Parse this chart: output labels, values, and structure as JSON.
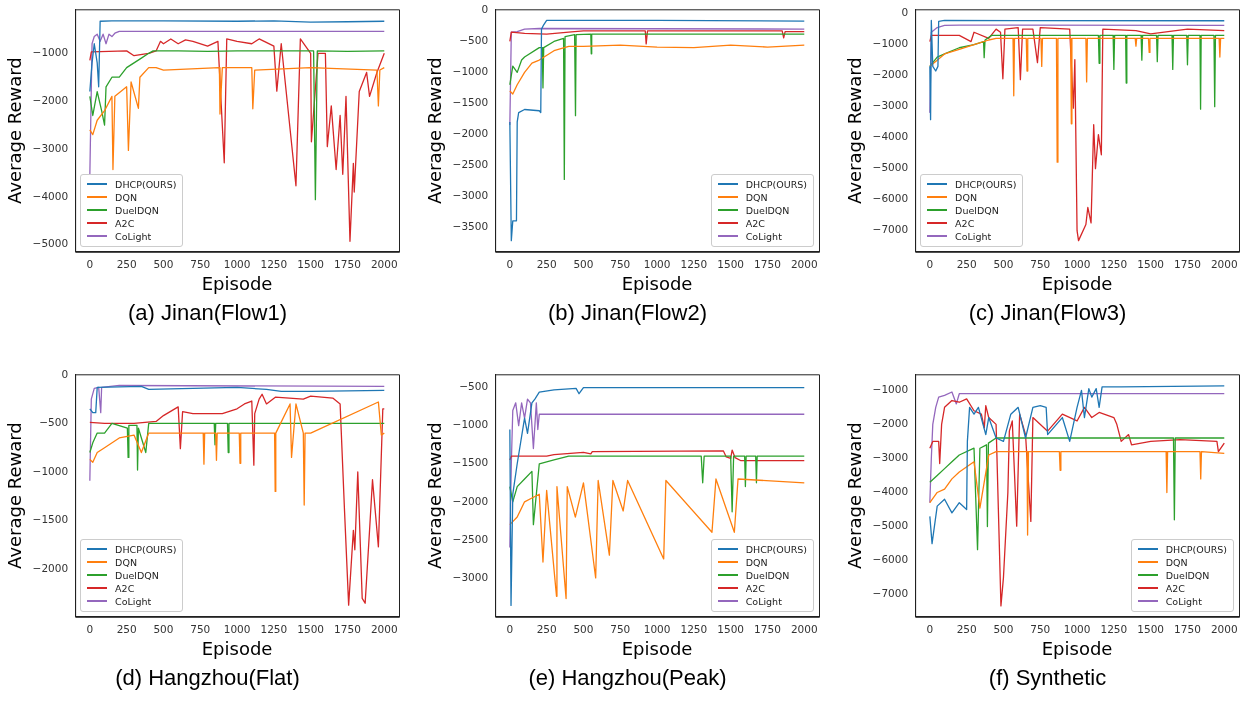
{
  "chart_data": [
    {
      "type": "line",
      "title": "(a) Jinan(Flow1)",
      "xlabel": "Episode",
      "ylabel": "Average Reward",
      "xlim": [
        -100,
        2100
      ],
      "xticks": [
        0,
        250,
        500,
        750,
        1000,
        1250,
        1500,
        1750,
        2000
      ],
      "ylim": [
        -5150,
        -80
      ],
      "yticks": [
        -5000,
        -4000,
        -3000,
        -2000,
        -1000
      ],
      "legend": "bottom left",
      "series": [
        {
          "name": "DHCP(OURS)",
          "color": "#1f77b4",
          "x": [
            0,
            15,
            30,
            50,
            60,
            70,
            150,
            500,
            1000,
            1250,
            1500,
            1750,
            2000
          ],
          "values": [
            -1800,
            -1200,
            -800,
            -1200,
            -1700,
            -330,
            -320,
            -320,
            -330,
            -320,
            -350,
            -340,
            -330
          ]
        },
        {
          "name": "DQN",
          "color": "#ff7f0e",
          "x": [
            0,
            20,
            50,
            100,
            150,
            157,
            170,
            250,
            262,
            280,
            330,
            340,
            400,
            450,
            500,
            880,
            884,
            900,
            1100,
            1107,
            1120,
            1500,
            1950,
            1960,
            1970,
            2000
          ],
          "values": [
            -2600,
            -2700,
            -2400,
            -2200,
            -1900,
            -3430,
            -1900,
            -1700,
            -3030,
            -1600,
            -2150,
            -1500,
            -1300,
            -1300,
            -1350,
            -1300,
            -2270,
            -1300,
            -1300,
            -2160,
            -1350,
            -1300,
            -1350,
            -2100,
            -1350,
            -1300
          ]
        },
        {
          "name": "DuelDQN",
          "color": "#2ca02c",
          "x": [
            0,
            20,
            50,
            80,
            100,
            110,
            150,
            200,
            250,
            300,
            350,
            400,
            430,
            600,
            800,
            1000,
            1250,
            1520,
            1532,
            1545,
            1750,
            2000
          ],
          "values": [
            -1900,
            -2300,
            -1800,
            -2200,
            -2500,
            -1700,
            -1500,
            -1500,
            -1300,
            -1200,
            -1100,
            -1000,
            -950,
            -950,
            -960,
            -950,
            -950,
            -950,
            -4060,
            -950,
            -960,
            -950
          ]
        },
        {
          "name": "A2C",
          "color": "#d62728",
          "x": [
            0,
            10,
            250,
            300,
            400,
            450,
            480,
            500,
            550,
            600,
            650,
            700,
            800,
            870,
            913,
            930,
            1000,
            1100,
            1150,
            1250,
            1270,
            1300,
            1400,
            1430,
            1500,
            1505,
            1550,
            1600,
            1613,
            1640,
            1673,
            1700,
            1718,
            1740,
            1767,
            1790,
            1796,
            1830,
            1880,
            1900,
            1950,
            2000
          ],
          "values": [
            -1150,
            -970,
            -950,
            -1050,
            -1000,
            -950,
            -750,
            -800,
            -700,
            -800,
            -720,
            -750,
            -850,
            -750,
            -3290,
            -700,
            -750,
            -800,
            -700,
            -850,
            -1790,
            -800,
            -3770,
            -700,
            -1000,
            -2850,
            -1000,
            -1000,
            -2950,
            -2100,
            -3430,
            -2300,
            -3530,
            -1900,
            -4930,
            -3300,
            -3900,
            -1800,
            -1400,
            -1900,
            -1400,
            -1000
          ]
        },
        {
          "name": "CoLight",
          "color": "#9467bd",
          "x": [
            0,
            15,
            30,
            50,
            70,
            90,
            110,
            130,
            150,
            170,
            200,
            250,
            2000
          ],
          "values": [
            -3550,
            -800,
            -650,
            -600,
            -750,
            -600,
            -800,
            -600,
            -650,
            -580,
            -540,
            -540,
            -540
          ]
        }
      ]
    },
    {
      "type": "line",
      "title": "(b) Jinan(Flow2)",
      "xlabel": "Episode",
      "ylabel": "Average Reward",
      "xlim": [
        -100,
        2100
      ],
      "xticks": [
        0,
        250,
        500,
        750,
        1000,
        1250,
        1500,
        1750,
        2000
      ],
      "ylim": [
        -3900,
        20
      ],
      "yticks": [
        -3500,
        -3000,
        -2500,
        -2000,
        -1500,
        -1000,
        -500,
        0
      ],
      "legend": "bottom right",
      "series": [
        {
          "name": "DHCP(OURS)",
          "color": "#1f77b4",
          "x": [
            0,
            10,
            20,
            45,
            50,
            60,
            100,
            200,
            210,
            215,
            230,
            250,
            500,
            1000,
            2000
          ],
          "values": [
            -1800,
            -3720,
            -3400,
            -3400,
            -1800,
            -1650,
            -1600,
            -1620,
            -1650,
            -300,
            -230,
            -160,
            -160,
            -160,
            -170
          ]
        },
        {
          "name": "DQN",
          "color": "#ff7f0e",
          "x": [
            0,
            20,
            50,
            100,
            150,
            200,
            300,
            400,
            500,
            750,
            1000,
            1250,
            1500,
            1750,
            2000
          ],
          "values": [
            -1300,
            -1350,
            -1200,
            -1000,
            -850,
            -800,
            -650,
            -580,
            -580,
            -560,
            -590,
            -600,
            -560,
            -590,
            -560
          ]
        },
        {
          "name": "DuelDQN",
          "color": "#2ca02c",
          "x": [
            0,
            20,
            50,
            80,
            100,
            200,
            220,
            225,
            230,
            300,
            365,
            370,
            375,
            440,
            446,
            450,
            550,
            553,
            556,
            2000
          ],
          "values": [
            -1200,
            -900,
            -1000,
            -800,
            -750,
            -600,
            -600,
            -1250,
            -600,
            -500,
            -450,
            -2730,
            -420,
            -390,
            -1700,
            -390,
            -380,
            -700,
            -380,
            -380
          ]
        },
        {
          "name": "A2C",
          "color": "#d62728",
          "x": [
            0,
            10,
            100,
            250,
            400,
            500,
            920,
            926,
            935,
            1500,
            1850,
            1860,
            1870,
            2000
          ],
          "values": [
            -500,
            -350,
            -370,
            -380,
            -350,
            -330,
            -330,
            -540,
            -330,
            -330,
            -330,
            -440,
            -340,
            -340
          ]
        },
        {
          "name": "CoLight",
          "color": "#9467bd",
          "x": [
            0,
            10,
            50,
            100,
            200,
            2000
          ],
          "values": [
            -1850,
            -350,
            -340,
            -300,
            -290,
            -300
          ]
        }
      ]
    },
    {
      "type": "line",
      "title": "(c) Jinan(Flow3)",
      "xlabel": "Episode",
      "ylabel": "Average Reward",
      "xlim": [
        -100,
        2100
      ],
      "xticks": [
        0,
        250,
        500,
        750,
        1000,
        1250,
        1500,
        1750,
        2000
      ],
      "ylim": [
        -7680,
        140
      ],
      "yticks": [
        -7000,
        -6000,
        -5000,
        -4000,
        -3000,
        -2000,
        -1000,
        0
      ],
      "legend": "bottom left",
      "series": [
        {
          "name": "DHCP(OURS)",
          "color": "#1f77b4",
          "x": [
            0,
            5,
            10,
            20,
            40,
            55,
            60,
            100,
            2000
          ],
          "values": [
            -1700,
            -3420,
            -220,
            -1700,
            -1850,
            -1700,
            -250,
            -220,
            -230
          ]
        },
        {
          "name": "DQN",
          "color": "#ff7f0e",
          "x": [
            0,
            50,
            100,
            200,
            300,
            400,
            450,
            565,
            570,
            575,
            655,
            660,
            665,
            755,
            760,
            765,
            860,
            865,
            870,
            957,
            961,
            965,
            1060,
            1065,
            1070,
            1395,
            1400,
            1405,
            1485,
            1490,
            1495,
            1965,
            1970,
            1975,
            2000
          ],
          "values": [
            -1700,
            -1500,
            -1300,
            -1150,
            -1000,
            -850,
            -800,
            -800,
            -2650,
            -800,
            -800,
            -1850,
            -800,
            -800,
            -1700,
            -800,
            -800,
            -4790,
            -800,
            -800,
            -3550,
            -800,
            -800,
            -2200,
            -800,
            -800,
            -1050,
            -800,
            -800,
            -1250,
            -800,
            -800,
            -1400,
            -800,
            -800
          ]
        },
        {
          "name": "DuelDQN",
          "color": "#2ca02c",
          "x": [
            0,
            50,
            100,
            200,
            300,
            365,
            369,
            375,
            420,
            1145,
            1150,
            1155,
            1245,
            1250,
            1255,
            1330,
            1334,
            1338,
            1435,
            1440,
            1445,
            1540,
            1545,
            1550,
            1645,
            1650,
            1655,
            1745,
            1750,
            1755,
            1835,
            1839,
            1843,
            1930,
            1935,
            1940,
            2000
          ],
          "values": [
            -1700,
            -1400,
            -1300,
            -1100,
            -1000,
            -900,
            -1420,
            -850,
            -700,
            -700,
            -1600,
            -700,
            -700,
            -1800,
            -700,
            -700,
            -2240,
            -700,
            -700,
            -1500,
            -700,
            -700,
            -1550,
            -700,
            -700,
            -1800,
            -700,
            -700,
            -1650,
            -700,
            -700,
            -3080,
            -700,
            -700,
            -3000,
            -700,
            -700
          ]
        },
        {
          "name": "A2C",
          "color": "#d62728",
          "x": [
            0,
            10,
            200,
            280,
            300,
            400,
            450,
            480,
            496,
            510,
            600,
            615,
            630,
            700,
            731,
            750,
            950,
            975,
            985,
            1000,
            1010,
            1060,
            1073,
            1095,
            1113,
            1125,
            1145,
            1165,
            1175,
            1400,
            1500,
            1750,
            2000
          ],
          "values": [
            -900,
            -700,
            -700,
            -900,
            -600,
            -800,
            -500,
            -600,
            -2100,
            -500,
            -450,
            -2130,
            -500,
            -500,
            -1580,
            -450,
            -500,
            -3050,
            -1480,
            -7000,
            -7320,
            -6800,
            -6250,
            -6750,
            -3580,
            -5000,
            -3900,
            -4550,
            -500,
            -550,
            -650,
            -500,
            -550
          ]
        },
        {
          "name": "CoLight",
          "color": "#9467bd",
          "x": [
            0,
            10,
            50,
            100,
            200,
            2000
          ],
          "values": [
            -3200,
            -600,
            -450,
            -380,
            -370,
            -380
          ]
        }
      ]
    },
    {
      "type": "line",
      "title": "(d) Hangzhou(Flat)",
      "xlabel": "Episode",
      "ylabel": "Average Reward",
      "xlim": [
        -100,
        2100
      ],
      "xticks": [
        0,
        250,
        500,
        750,
        1000,
        1250,
        1500,
        1750,
        2000
      ],
      "ylim": [
        -2490,
        5
      ],
      "yticks": [
        -2000,
        -1500,
        -1000,
        -500,
        0
      ],
      "legend": "bottom left",
      "series": [
        {
          "name": "DHCP(OURS)",
          "color": "#1f77b4",
          "x": [
            0,
            20,
            40,
            50,
            350,
            400,
            1000,
            1200,
            1300,
            1500,
            2000
          ],
          "values": [
            -350,
            -390,
            -390,
            -130,
            -120,
            -150,
            -130,
            -150,
            -170,
            -170,
            -160
          ]
        },
        {
          "name": "DQN",
          "color": "#ff7f0e",
          "x": [
            0,
            20,
            50,
            100,
            200,
            300,
            350,
            400,
            770,
            775,
            780,
            855,
            860,
            865,
            1015,
            1020,
            1025,
            1255,
            1259,
            1263,
            1360,
            1370,
            1400,
            1450,
            1456,
            1462,
            1500,
            1960,
            1980,
            2000
          ],
          "values": [
            -870,
            -900,
            -800,
            -750,
            -650,
            -620,
            -800,
            -600,
            -600,
            -920,
            -600,
            -600,
            -880,
            -600,
            -600,
            -910,
            -600,
            -600,
            -1200,
            -600,
            -300,
            -850,
            -300,
            -600,
            -1340,
            -600,
            -600,
            -280,
            -620,
            -600
          ]
        },
        {
          "name": "DuelDQN",
          "color": "#2ca02c",
          "x": [
            0,
            20,
            50,
            100,
            150,
            255,
            260,
            265,
            320,
            324,
            330,
            380,
            400,
            845,
            850,
            855,
            935,
            940,
            945,
            2000
          ],
          "values": [
            -800,
            -700,
            -600,
            -600,
            -500,
            -550,
            -850,
            -520,
            -520,
            -980,
            -550,
            -800,
            -500,
            -500,
            -720,
            -500,
            -500,
            -800,
            -500,
            -500
          ]
        },
        {
          "name": "A2C",
          "color": "#d62728",
          "x": [
            0,
            100,
            300,
            450,
            500,
            600,
            615,
            630,
            700,
            900,
            1000,
            1050,
            1100,
            1114,
            1120,
            1150,
            1170,
            1200,
            1260,
            1450,
            1500,
            1650,
            1700,
            1730,
            1758,
            1790,
            1800,
            1820,
            1850,
            1870,
            1900,
            1920,
            1960,
            1990,
            2000
          ],
          "values": [
            -490,
            -500,
            -500,
            -480,
            -420,
            -330,
            -760,
            -380,
            -400,
            -400,
            -350,
            -300,
            -270,
            -930,
            -400,
            -250,
            -200,
            -300,
            -230,
            -250,
            -220,
            -240,
            -300,
            -1400,
            -2370,
            -1600,
            -1800,
            -1000,
            -2300,
            -2350,
            -1600,
            -1080,
            -1770,
            -350,
            -350
          ]
        },
        {
          "name": "CoLight",
          "color": "#9467bd",
          "x": [
            0,
            10,
            30,
            60,
            74,
            80,
            200,
            2000
          ],
          "values": [
            -1090,
            -250,
            -140,
            -130,
            -390,
            -130,
            -110,
            -120
          ]
        }
      ]
    },
    {
      "type": "line",
      "title": "(e) Hangzhou(Peak)",
      "xlabel": "Episode",
      "ylabel": "Average Reward",
      "xlim": [
        -100,
        2100
      ],
      "xticks": [
        0,
        250,
        500,
        750,
        1000,
        1250,
        1500,
        1750,
        2000
      ],
      "ylim": [
        -3510,
        -325
      ],
      "yticks": [
        -3000,
        -2500,
        -2000,
        -1500,
        -1000,
        -500
      ],
      "legend": "bottom right",
      "series": [
        {
          "name": "DHCP(OURS)",
          "color": "#1f77b4",
          "x": [
            0,
            8,
            20,
            50,
            100,
            120,
            150,
            170,
            200,
            300,
            450,
            470,
            500,
            2000
          ],
          "values": [
            -1050,
            -3360,
            -1900,
            -1500,
            -900,
            -1100,
            -700,
            -650,
            -560,
            -530,
            -510,
            -580,
            -500,
            -500
          ]
        },
        {
          "name": "DQN",
          "color": "#ff7f0e",
          "x": [
            0,
            50,
            100,
            150,
            200,
            225,
            250,
            317,
            320,
            382,
            390,
            445,
            500,
            583,
            600,
            676,
            700,
            770,
            800,
            1045,
            1060,
            1373,
            1400,
            1525,
            1550,
            2000
          ],
          "values": [
            -2300,
            -2200,
            -2000,
            -1950,
            -1900,
            -2790,
            -1850,
            -3240,
            -1800,
            -3270,
            -1800,
            -2200,
            -1750,
            -3000,
            -1720,
            -2700,
            -1720,
            -2120,
            -1720,
            -2750,
            -1720,
            -2400,
            -1700,
            -2400,
            -1700,
            -1750
          ]
        },
        {
          "name": "DuelDQN",
          "color": "#2ca02c",
          "x": [
            0,
            20,
            50,
            100,
            150,
            160,
            200,
            300,
            400,
            1300,
            1310,
            1320,
            1500,
            1510,
            1520,
            1595,
            1600,
            1605,
            1670,
            1675,
            1680,
            2000
          ],
          "values": [
            -1800,
            -2000,
            -1800,
            -1700,
            -1600,
            -2300,
            -1500,
            -1450,
            -1400,
            -1400,
            -1750,
            -1400,
            -1400,
            -2130,
            -1400,
            -1400,
            -1800,
            -1400,
            -1400,
            -1750,
            -1400,
            -1400
          ]
        },
        {
          "name": "A2C",
          "color": "#d62728",
          "x": [
            0,
            10,
            250,
            300,
            500,
            550,
            560,
            1450,
            1470,
            1500,
            1510,
            1530,
            1570,
            2000
          ],
          "values": [
            -1450,
            -1400,
            -1400,
            -1380,
            -1350,
            -1370,
            -1340,
            -1330,
            -1410,
            -1430,
            -1320,
            -1420,
            -1460,
            -1460
          ]
        },
        {
          "name": "CoLight",
          "color": "#9467bd",
          "x": [
            0,
            10,
            20,
            40,
            60,
            80,
            100,
            120,
            140,
            160,
            180,
            190,
            200,
            2000
          ],
          "values": [
            -2600,
            -1500,
            -800,
            -700,
            -1000,
            -700,
            -900,
            -650,
            -700,
            -1300,
            -700,
            -1050,
            -850,
            -850
          ]
        }
      ]
    },
    {
      "type": "line",
      "title": "(f) Synthetic",
      "xlabel": "Episode",
      "ylabel": "Average Reward",
      "xlim": [
        -100,
        2100
      ],
      "xticks": [
        0,
        250,
        500,
        750,
        1000,
        1250,
        1500,
        1750,
        2000
      ],
      "ylim": [
        -7650,
        -530
      ],
      "yticks": [
        -7000,
        -6000,
        -5000,
        -4000,
        -3000,
        -2000,
        -1000
      ],
      "legend": "bottom right",
      "series": [
        {
          "name": "DHCP(OURS)",
          "color": "#1f77b4",
          "x": [
            0,
            15,
            50,
            100,
            150,
            200,
            250,
            255,
            270,
            300,
            330,
            380,
            400,
            450,
            500,
            550,
            600,
            650,
            700,
            750,
            790,
            800,
            900,
            950,
            1000,
            1030,
            1050,
            1080,
            1100,
            1130,
            1150,
            1170,
            1300,
            2000
          ],
          "values": [
            -4700,
            -5500,
            -4400,
            -4200,
            -4600,
            -4300,
            -4500,
            -2500,
            -1500,
            -1700,
            -1500,
            -2300,
            -1800,
            -2400,
            -2500,
            -1700,
            -1500,
            -2400,
            -1500,
            -1450,
            -1500,
            -2300,
            -1800,
            -2500,
            -1500,
            -1000,
            -1800,
            -950,
            -1200,
            -950,
            -1500,
            -900,
            -900,
            -870
          ]
        },
        {
          "name": "DQN",
          "color": "#ff7f0e",
          "x": [
            0,
            50,
            100,
            150,
            200,
            300,
            340,
            400,
            450,
            660,
            664,
            670,
            880,
            885,
            890,
            1605,
            1610,
            1615,
            1835,
            1840,
            1845,
            2000
          ],
          "values": [
            -4300,
            -4000,
            -3900,
            -3600,
            -3400,
            -3100,
            -4460,
            -2900,
            -2800,
            -2800,
            -5250,
            -2800,
            -2800,
            -3350,
            -2800,
            -2800,
            -4000,
            -2800,
            -2800,
            -3600,
            -2800,
            -2850
          ]
        },
        {
          "name": "DuelDQN",
          "color": "#2ca02c",
          "x": [
            0,
            50,
            100,
            150,
            200,
            300,
            324,
            340,
            385,
            391,
            398,
            450,
            1655,
            1661,
            1667,
            2000
          ],
          "values": [
            -3700,
            -3500,
            -3300,
            -3100,
            -2900,
            -2700,
            -5680,
            -2700,
            -2600,
            -5000,
            -2550,
            -2400,
            -2400,
            -4800,
            -2400,
            -2400
          ]
        },
        {
          "name": "A2C",
          "color": "#d62728",
          "x": [
            0,
            20,
            60,
            67,
            80,
            100,
            150,
            200,
            250,
            300,
            350,
            370,
            380,
            400,
            450,
            483,
            500,
            530,
            540,
            560,
            590,
            610,
            650,
            686,
            700,
            800,
            900,
            1000,
            1050,
            1100,
            1150,
            1250,
            1270,
            1300,
            1350,
            1370,
            1500,
            1700,
            1950,
            1960,
            2000
          ],
          "values": [
            -2700,
            -2500,
            -2500,
            -3150,
            -2000,
            -1500,
            -1300,
            -1350,
            -1250,
            -1600,
            -1700,
            -2100,
            -1450,
            -1800,
            -2000,
            -7330,
            -6500,
            -4000,
            -2200,
            -1900,
            -4990,
            -1700,
            -2300,
            -4850,
            -1800,
            -2200,
            -1700,
            -1900,
            -1500,
            -1800,
            -1650,
            -1800,
            -2000,
            -2500,
            -2300,
            -2600,
            -2500,
            -2450,
            -2500,
            -2800,
            -2550
          ]
        },
        {
          "name": "CoLight",
          "color": "#9467bd",
          "x": [
            0,
            10,
            20,
            40,
            60,
            100,
            150,
            180,
            200,
            2000
          ],
          "values": [
            -4300,
            -3000,
            -2000,
            -1500,
            -1200,
            -1150,
            -1050,
            -1400,
            -1100,
            -1100
          ]
        }
      ]
    }
  ]
}
